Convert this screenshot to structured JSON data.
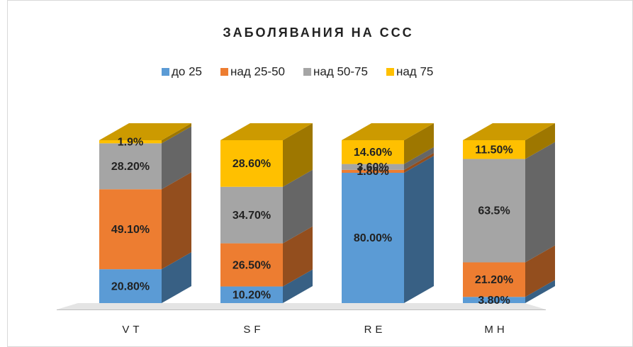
{
  "chart_data": {
    "type": "bar",
    "stacked": true,
    "title": "ЗАБОЛЯВАНИЯ НА ССС",
    "categories": [
      "VT",
      "SF",
      "RE",
      "MH"
    ],
    "series": [
      {
        "name": "до 25",
        "color": "#5b9bd5",
        "values": [
          20.8,
          10.2,
          80,
          3.8
        ],
        "value_labels": [
          "20.80%",
          "10.20%",
          "80.00%",
          "3.80%"
        ]
      },
      {
        "name": "над 25-50",
        "color": "#ed7d31",
        "values": [
          49.1,
          26.5,
          1.8,
          21.2
        ],
        "value_labels": [
          "49.10%",
          "26.50%",
          "1.80%",
          "21.20%"
        ]
      },
      {
        "name": "над 50-75",
        "color": "#a5a5a5",
        "values": [
          28.2,
          34.7,
          3.6,
          63.5
        ],
        "value_labels": [
          "28.20%",
          "34.70%",
          "3.60%",
          "63.5%"
        ]
      },
      {
        "name": "над 75",
        "color": "#ffc000",
        "values": [
          1.9,
          28.6,
          14.6,
          11.5
        ],
        "value_labels": [
          "1.9%",
          "28.60%",
          "14.60%",
          "11.50%"
        ]
      }
    ],
    "ylim": [
      0,
      100
    ],
    "legend": "top"
  }
}
